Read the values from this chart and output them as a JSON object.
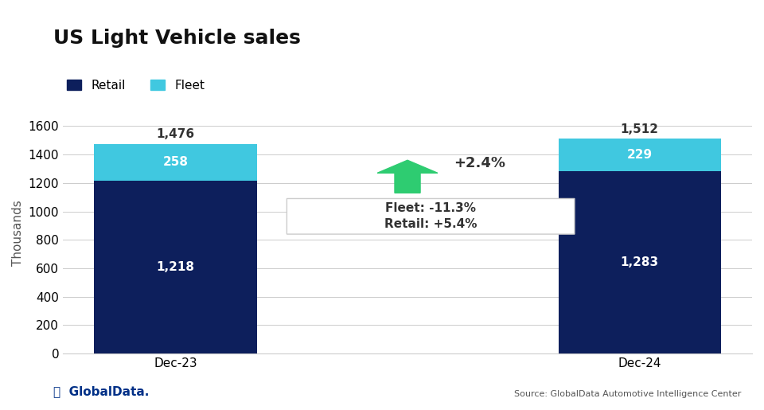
{
  "title": "US Light Vehicle sales",
  "ylabel": "Thousands",
  "categories": [
    "Dec-23",
    "Dec-24"
  ],
  "retail_values": [
    1218,
    1283
  ],
  "fleet_values": [
    258,
    229
  ],
  "totals": [
    1476,
    1512
  ],
  "retail_color": "#0d1f5c",
  "fleet_color": "#40c8e0",
  "retail_label": "Retail",
  "fleet_label": "Fleet",
  "ylim": [
    0,
    1700
  ],
  "yticks": [
    0,
    200,
    400,
    600,
    800,
    1000,
    1200,
    1400,
    1600
  ],
  "arrow_label": "+2.4%",
  "box_line1": "Fleet: -11.3%",
  "box_line2": "Retail: +5.4%",
  "arrow_color": "#2ecc71",
  "source_text": "Source: GlobalData Automotive Intelligence Center",
  "background_color": "#ffffff",
  "title_fontsize": 18,
  "label_fontsize": 11,
  "tick_fontsize": 11,
  "bar_width": 0.35
}
